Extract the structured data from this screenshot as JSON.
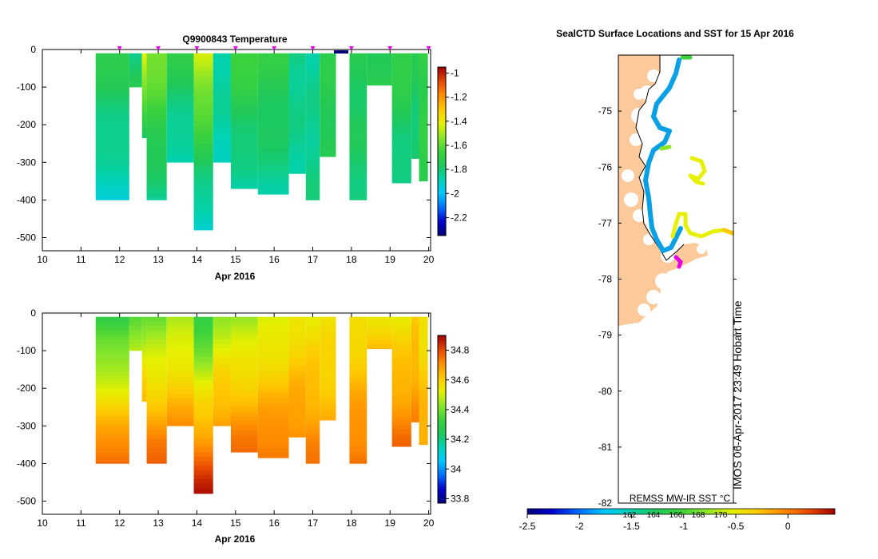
{
  "colors": {
    "land": "#fcc99b",
    "temp_scale": [
      "#00007a",
      "#0000d0",
      "#0070ff",
      "#00c8ff",
      "#00d2b4",
      "#1ec85a",
      "#3cd23c",
      "#8ce628",
      "#e6f000",
      "#ffc800",
      "#ff8c00",
      "#e64600",
      "#a00000"
    ],
    "sal_scale": [
      "#00007a",
      "#0000d0",
      "#0070ff",
      "#00c8ff",
      "#00d2b4",
      "#1ec85a",
      "#3cd23c",
      "#8ce628",
      "#e6f000",
      "#ffc800",
      "#ff8c00",
      "#e64600",
      "#a00000"
    ],
    "sst_scale": [
      "#00007a",
      "#0000d0",
      "#0070ff",
      "#00c8ff",
      "#00d2b4",
      "#1ec85a",
      "#3cd23c",
      "#8ce628",
      "#e6f000",
      "#ffc800",
      "#ff8c00",
      "#e64600",
      "#a00000"
    ]
  },
  "chart_data": [
    {
      "type": "heatmap",
      "title": "Q9900843  Temperature",
      "xlabel": "Apr 2016",
      "ylabel": "",
      "xlim": [
        10,
        20.05
      ],
      "ylim": [
        -535,
        0
      ],
      "x_ticks": [
        "10",
        "11",
        "12",
        "13",
        "14",
        "15",
        "16",
        "17",
        "18",
        "19",
        "20"
      ],
      "y_ticks": [
        "0",
        "-100",
        "-200",
        "-300",
        "-400",
        "-500"
      ],
      "colorbar": {
        "min": -2.35,
        "max": -0.95,
        "ticks": [
          "-1",
          "-1.2",
          "-1.4",
          "-1.6",
          "-1.8",
          "-2",
          "-2.2"
        ],
        "tick_values": [
          -1,
          -1.2,
          -1.4,
          -1.6,
          -1.8,
          -2,
          -2.2
        ]
      },
      "profile_markers": [
        12,
        13,
        14,
        15,
        16,
        17,
        18,
        19,
        20
      ],
      "profiles": [
        {
          "x0": 11.38,
          "x1": 12.25,
          "depth": 400,
          "top": -1.72,
          "bottom": -1.92
        },
        {
          "x0": 12.25,
          "x1": 12.58,
          "depth": 100,
          "top": -1.85,
          "bottom": -1.7
        },
        {
          "x0": 12.58,
          "x1": 12.7,
          "depth": 235,
          "top": -1.4,
          "bottom": -1.8
        },
        {
          "x0": 12.7,
          "x1": 13.22,
          "depth": 400,
          "top": -1.55,
          "bottom": -1.85
        },
        {
          "x0": 13.22,
          "x1": 13.92,
          "depth": 300,
          "top": -1.72,
          "bottom": -1.9
        },
        {
          "x0": 13.92,
          "x1": 14.42,
          "depth": 480,
          "top": -1.45,
          "bottom": -1.95
        },
        {
          "x0": 14.42,
          "x1": 14.88,
          "depth": 300,
          "top": -1.85,
          "bottom": -1.88
        },
        {
          "x0": 14.88,
          "x1": 15.58,
          "depth": 370,
          "top": -1.65,
          "bottom": -1.88
        },
        {
          "x0": 15.58,
          "x1": 16.38,
          "depth": 385,
          "top": -1.7,
          "bottom": -1.85
        },
        {
          "x0": 16.38,
          "x1": 16.82,
          "depth": 330,
          "top": -1.82,
          "bottom": -1.85
        },
        {
          "x0": 16.82,
          "x1": 17.18,
          "depth": 400,
          "top": -1.85,
          "bottom": -1.82
        },
        {
          "x0": 17.18,
          "x1": 17.6,
          "depth": 285,
          "top": -1.72,
          "bottom": -1.75
        },
        {
          "x0": 17.95,
          "x1": 18.4,
          "depth": 400,
          "top": -1.75,
          "bottom": -1.8
        },
        {
          "x0": 18.4,
          "x1": 19.05,
          "depth": 95,
          "top": -1.75,
          "bottom": -1.7
        },
        {
          "x0": 19.05,
          "x1": 19.55,
          "depth": 355,
          "top": -1.68,
          "bottom": -1.85
        },
        {
          "x0": 19.55,
          "x1": 19.75,
          "depth": 290,
          "top": -1.75,
          "bottom": -1.82
        },
        {
          "x0": 19.75,
          "x1": 19.98,
          "depth": 350,
          "top": -1.7,
          "bottom": -1.7
        }
      ]
    },
    {
      "type": "heatmap",
      "title": "",
      "xlabel": "Apr 2016",
      "ylabel": "",
      "xlim": [
        10,
        20.05
      ],
      "ylim": [
        -535,
        0
      ],
      "x_ticks": [
        "10",
        "11",
        "12",
        "13",
        "14",
        "15",
        "16",
        "17",
        "18",
        "19",
        "20"
      ],
      "y_ticks": [
        "0",
        "-100",
        "-200",
        "-300",
        "-400",
        "-500"
      ],
      "colorbar": {
        "min": 33.77,
        "max": 34.9,
        "ticks": [
          "34.8",
          "34.6",
          "34.4",
          "34.2",
          "34",
          "33.8"
        ],
        "tick_values": [
          34.8,
          34.6,
          34.4,
          34.2,
          34.0,
          33.8
        ]
      },
      "profiles": [
        {
          "x0": 11.38,
          "x1": 12.25,
          "depth": 400,
          "top": 34.3,
          "bottom": 34.78
        },
        {
          "x0": 12.25,
          "x1": 12.58,
          "depth": 100,
          "top": 34.35,
          "bottom": 34.5
        },
        {
          "x0": 12.58,
          "x1": 12.7,
          "depth": 235,
          "top": 34.4,
          "bottom": 34.65
        },
        {
          "x0": 12.7,
          "x1": 13.22,
          "depth": 400,
          "top": 34.4,
          "bottom": 34.78
        },
        {
          "x0": 13.22,
          "x1": 13.92,
          "depth": 300,
          "top": 34.45,
          "bottom": 34.7
        },
        {
          "x0": 13.92,
          "x1": 14.42,
          "depth": 480,
          "top": 34.3,
          "bottom": 34.88
        },
        {
          "x0": 14.42,
          "x1": 14.88,
          "depth": 300,
          "top": 34.45,
          "bottom": 34.7
        },
        {
          "x0": 14.88,
          "x1": 15.58,
          "depth": 370,
          "top": 34.45,
          "bottom": 34.76
        },
        {
          "x0": 15.58,
          "x1": 16.38,
          "depth": 385,
          "top": 34.5,
          "bottom": 34.76
        },
        {
          "x0": 16.38,
          "x1": 16.82,
          "depth": 330,
          "top": 34.55,
          "bottom": 34.72
        },
        {
          "x0": 16.82,
          "x1": 17.18,
          "depth": 400,
          "top": 34.55,
          "bottom": 34.74
        },
        {
          "x0": 17.18,
          "x1": 17.6,
          "depth": 285,
          "top": 34.55,
          "bottom": 34.65
        },
        {
          "x0": 17.95,
          "x1": 18.4,
          "depth": 400,
          "top": 34.55,
          "bottom": 34.76
        },
        {
          "x0": 18.4,
          "x1": 19.05,
          "depth": 95,
          "top": 34.55,
          "bottom": 34.66
        },
        {
          "x0": 19.05,
          "x1": 19.55,
          "depth": 355,
          "top": 34.55,
          "bottom": 34.76
        },
        {
          "x0": 19.55,
          "x1": 19.75,
          "depth": 290,
          "top": 34.6,
          "bottom": 34.72
        },
        {
          "x0": 19.75,
          "x1": 19.98,
          "depth": 350,
          "top": 34.55,
          "bottom": 34.68
        }
      ]
    },
    {
      "type": "map",
      "title": "SealCTD Surface Locations and SST for 15 Apr 2016",
      "ylim": [
        -82,
        -74
      ],
      "y_ticks": [
        "-75",
        "-76",
        "-77",
        "-78",
        "-79",
        "-80",
        "-81",
        "-82"
      ],
      "y_tick_values": [
        -75,
        -76,
        -77,
        -78,
        -79,
        -80,
        -81,
        -82
      ],
      "x_ticks": [
        "162",
        "164",
        "166",
        "168",
        "170"
      ],
      "colorbar": {
        "label": "REMSS MW-IR SST °C",
        "min": -2.5,
        "max": 0.45,
        "ticks": [
          "-2.5",
          "-2",
          "-1.5",
          "-1",
          "-0.5",
          "0"
        ],
        "tick_values": [
          -2.5,
          -2,
          -1.5,
          -1,
          -0.5,
          0
        ]
      },
      "vertical_label": "IMOS 06-Apr-2017 23:49 Hobart Time"
    }
  ]
}
